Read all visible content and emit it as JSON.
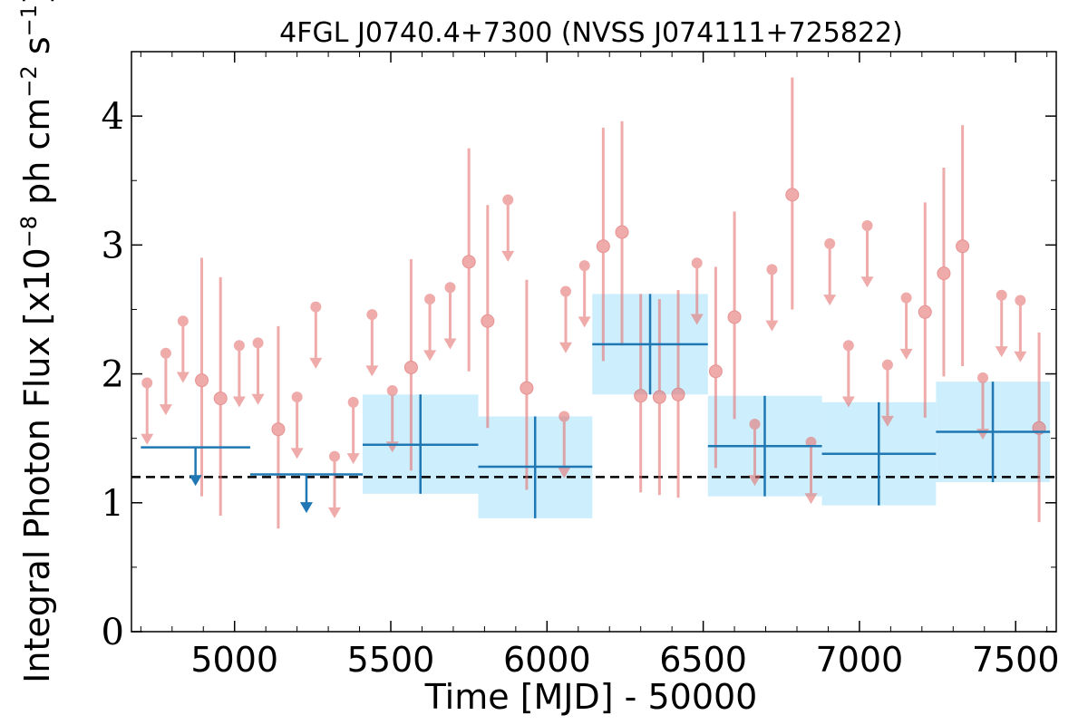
{
  "chart_data": {
    "type": "scatter",
    "title": "4FGL J0740.4+7300 (NVSS J074111+725822)",
    "xlabel": "Time [MJD] - 50000",
    "ylabel": "Integral Photon Flux [x10",
    "ylabel_exp1": "−8",
    "ylabel_mid": " ph cm",
    "ylabel_exp2": "−2",
    "ylabel_mid2": " s",
    "ylabel_exp3": "−1",
    "ylabel_end": "]",
    "xlim": [
      4670,
      7630
    ],
    "ylim": [
      0,
      4.5
    ],
    "x_ticks": [
      5000,
      5500,
      6000,
      6500,
      7000,
      7500
    ],
    "x_tick_labels": [
      "5000",
      "5500",
      "6000",
      "6500",
      "7000",
      "7500"
    ],
    "y_ticks": [
      0,
      1,
      2,
      3,
      4
    ],
    "y_tick_labels": [
      "0",
      "1",
      "2",
      "3",
      "4"
    ],
    "reference_line": 1.2,
    "colors": {
      "short_bins": "#e57373",
      "long_bins": "#1f77b4",
      "long_bins_band": "#cdeefc",
      "reference_line": "#000000"
    },
    "short_bin_detections": [
      {
        "x": 4895,
        "y": 1.95,
        "ylo": 1.05,
        "yhi": 2.9
      },
      {
        "x": 4955,
        "y": 1.81,
        "ylo": 0.9,
        "yhi": 2.75
      },
      {
        "x": 5140,
        "y": 1.57,
        "ylo": 0.8,
        "yhi": 2.37
      },
      {
        "x": 5565,
        "y": 2.05,
        "ylo": 1.25,
        "yhi": 2.89
      },
      {
        "x": 5750,
        "y": 2.87,
        "ylo": 2.02,
        "yhi": 3.75
      },
      {
        "x": 5810,
        "y": 2.41,
        "ylo": 1.58,
        "yhi": 3.31
      },
      {
        "x": 5935,
        "y": 1.89,
        "ylo": 1.1,
        "yhi": 2.73
      },
      {
        "x": 6180,
        "y": 2.99,
        "ylo": 2.1,
        "yhi": 3.91
      },
      {
        "x": 6240,
        "y": 3.1,
        "ylo": 2.22,
        "yhi": 3.96
      },
      {
        "x": 6300,
        "y": 1.83,
        "ylo": 1.08,
        "yhi": 2.62
      },
      {
        "x": 6360,
        "y": 1.82,
        "ylo": 1.06,
        "yhi": 2.58
      },
      {
        "x": 6420,
        "y": 1.84,
        "ylo": 1.04,
        "yhi": 2.65
      },
      {
        "x": 6540,
        "y": 2.02,
        "ylo": 1.27,
        "yhi": 2.83
      },
      {
        "x": 6600,
        "y": 2.44,
        "ylo": 1.65,
        "yhi": 3.26
      },
      {
        "x": 6785,
        "y": 3.39,
        "ylo": 2.5,
        "yhi": 4.3
      },
      {
        "x": 7210,
        "y": 2.48,
        "ylo": 1.66,
        "yhi": 3.33
      },
      {
        "x": 7270,
        "y": 2.78,
        "ylo": 1.98,
        "yhi": 3.6
      },
      {
        "x": 7330,
        "y": 2.99,
        "ylo": 2.06,
        "yhi": 3.93
      },
      {
        "x": 7575,
        "y": 1.58,
        "ylo": 0.85,
        "yhi": 2.32
      }
    ],
    "short_bin_upper_limits": [
      {
        "x": 4720,
        "y": 1.93
      },
      {
        "x": 4780,
        "y": 2.16
      },
      {
        "x": 4835,
        "y": 2.41
      },
      {
        "x": 5015,
        "y": 2.22
      },
      {
        "x": 5075,
        "y": 2.24
      },
      {
        "x": 5200,
        "y": 1.82
      },
      {
        "x": 5260,
        "y": 2.52
      },
      {
        "x": 5320,
        "y": 1.36
      },
      {
        "x": 5380,
        "y": 1.78
      },
      {
        "x": 5440,
        "y": 2.46
      },
      {
        "x": 5505,
        "y": 1.87
      },
      {
        "x": 5625,
        "y": 2.58
      },
      {
        "x": 5690,
        "y": 2.67
      },
      {
        "x": 5875,
        "y": 3.35
      },
      {
        "x": 6055,
        "y": 1.67
      },
      {
        "x": 6060,
        "y": 2.64
      },
      {
        "x": 6120,
        "y": 2.84
      },
      {
        "x": 6480,
        "y": 2.86
      },
      {
        "x": 6665,
        "y": 1.61
      },
      {
        "x": 6720,
        "y": 2.81
      },
      {
        "x": 6845,
        "y": 1.47
      },
      {
        "x": 6905,
        "y": 3.01
      },
      {
        "x": 6965,
        "y": 2.22
      },
      {
        "x": 7025,
        "y": 3.15
      },
      {
        "x": 7090,
        "y": 2.07
      },
      {
        "x": 7150,
        "y": 2.59
      },
      {
        "x": 7395,
        "y": 1.97
      },
      {
        "x": 7455,
        "y": 2.61
      },
      {
        "x": 7515,
        "y": 2.57
      }
    ],
    "long_bin_upper_limits": [
      {
        "x0": 4700,
        "x1": 5050,
        "xmid": 4875,
        "y": 1.43
      },
      {
        "x0": 5050,
        "x1": 5410,
        "xmid": 5230,
        "y": 1.22
      }
    ],
    "long_bin_detections": [
      {
        "x0": 5410,
        "x1": 5780,
        "xmid": 5595,
        "y": 1.45,
        "ylo": 1.07,
        "yhi": 1.84
      },
      {
        "x0": 5780,
        "x1": 6145,
        "xmid": 5962,
        "y": 1.28,
        "ylo": 0.88,
        "yhi": 1.67
      },
      {
        "x0": 6145,
        "x1": 6515,
        "xmid": 6330,
        "y": 2.23,
        "ylo": 1.84,
        "yhi": 2.62
      },
      {
        "x0": 6515,
        "x1": 6880,
        "xmid": 6697,
        "y": 1.44,
        "ylo": 1.05,
        "yhi": 1.83
      },
      {
        "x0": 6880,
        "x1": 7245,
        "xmid": 7062,
        "y": 1.38,
        "ylo": 0.98,
        "yhi": 1.78
      },
      {
        "x0": 7245,
        "x1": 7610,
        "xmid": 7427,
        "y": 1.55,
        "ylo": 1.16,
        "yhi": 1.94
      }
    ]
  }
}
